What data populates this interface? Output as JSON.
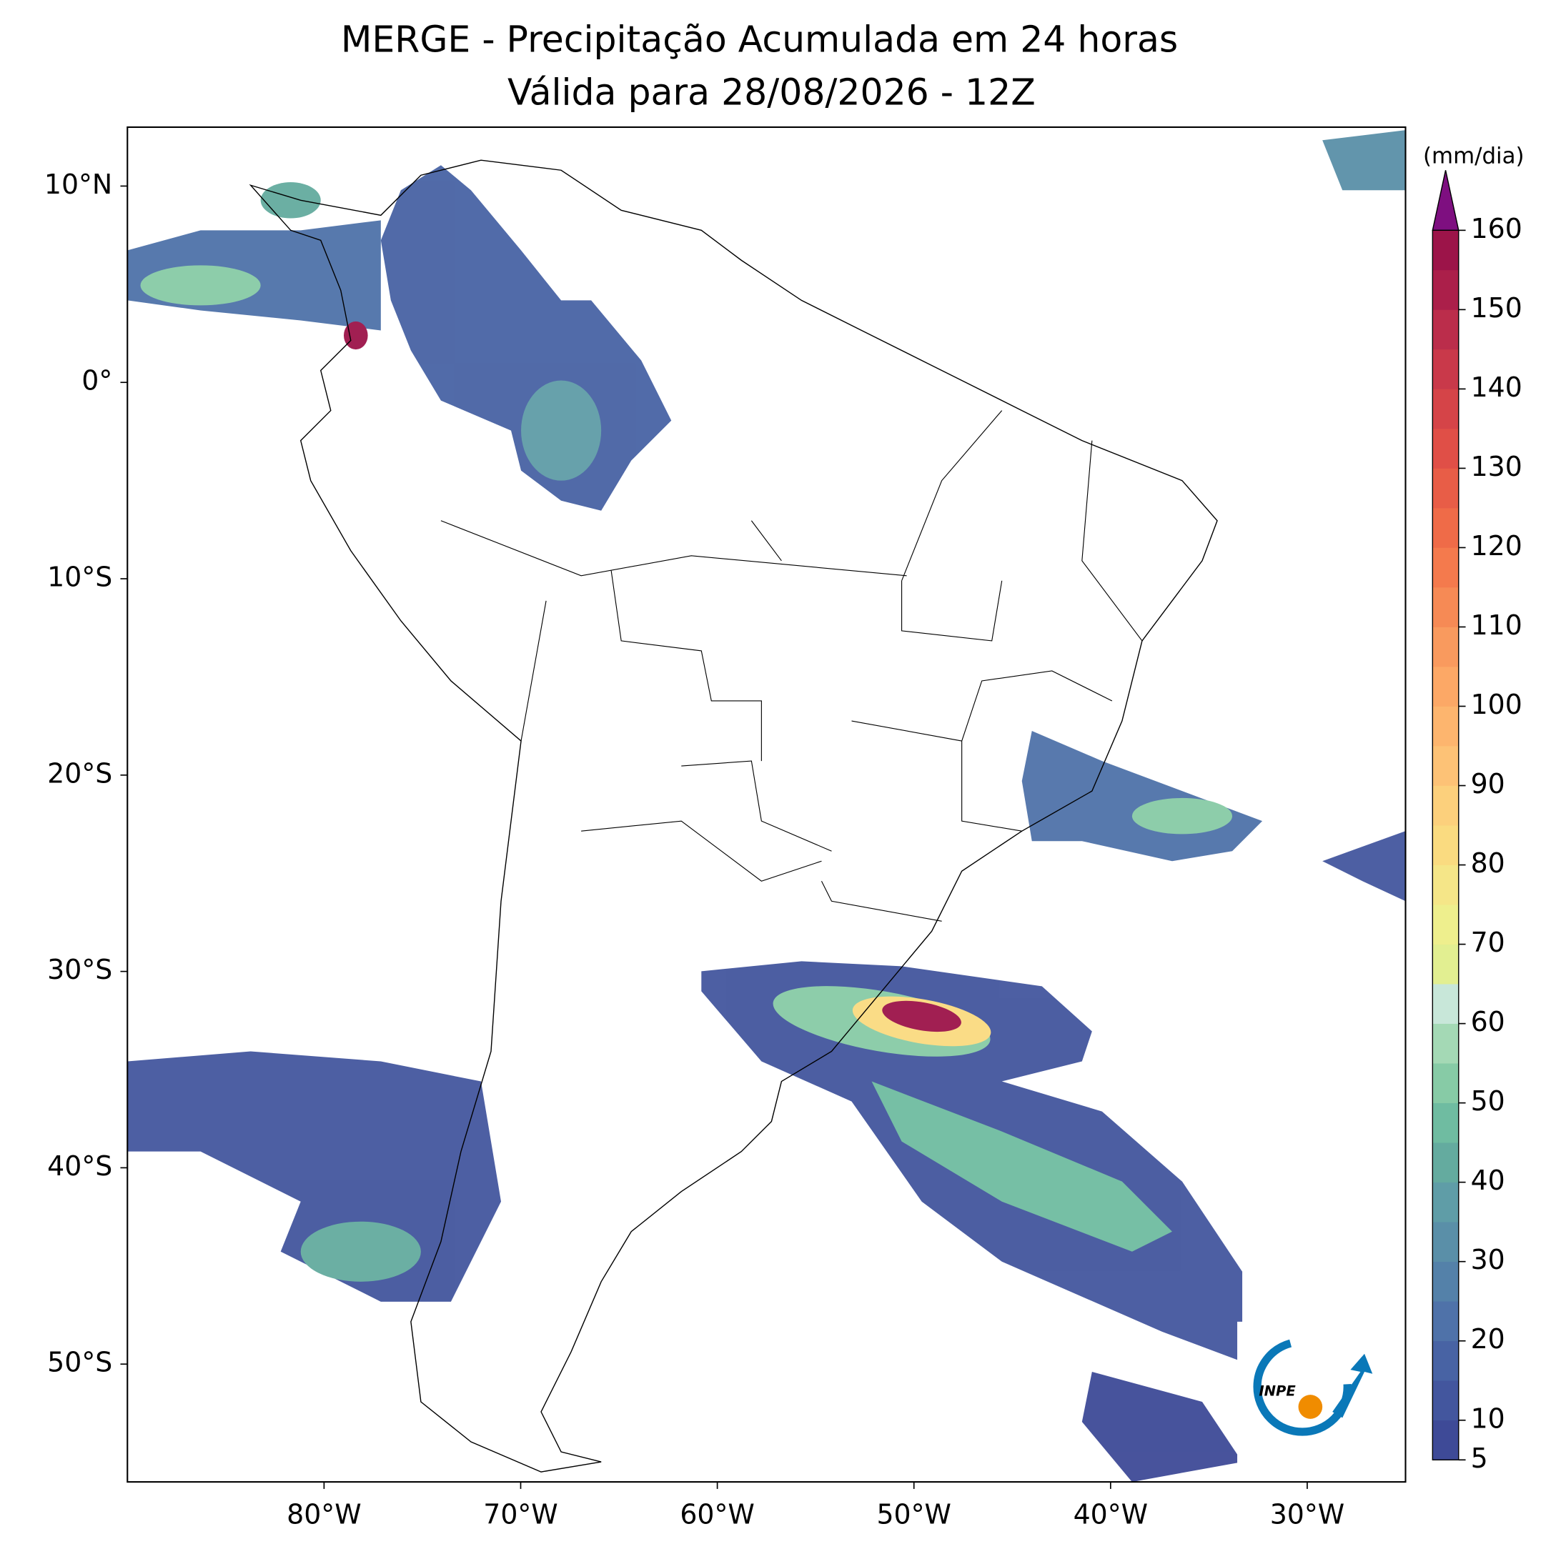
{
  "chart_data": {
    "type": "map",
    "title": "MERGE - Precipitação Acumulada em 24 horas",
    "subtitle": "Válida para 28/08/2026 - 12Z",
    "xlim": [
      -90,
      -25
    ],
    "ylim": [
      -56,
      13
    ],
    "xticks": [
      {
        "value": -80,
        "label": "80°W"
      },
      {
        "value": -70,
        "label": "70°W"
      },
      {
        "value": -60,
        "label": "60°W"
      },
      {
        "value": -50,
        "label": "50°W"
      },
      {
        "value": -40,
        "label": "40°W"
      },
      {
        "value": -30,
        "label": "30°W"
      }
    ],
    "yticks": [
      {
        "value": 10,
        "label": "10°N"
      },
      {
        "value": 0,
        "label": "0°"
      },
      {
        "value": -10,
        "label": "10°S"
      },
      {
        "value": -20,
        "label": "20°S"
      },
      {
        "value": -30,
        "label": "30°S"
      },
      {
        "value": -40,
        "label": "40°S"
      },
      {
        "value": -50,
        "label": "50°S"
      }
    ],
    "colorbar": {
      "label": "(mm/dia)",
      "lim": [
        5,
        160
      ],
      "ticks": [
        5,
        10,
        20,
        30,
        40,
        50,
        60,
        70,
        80,
        90,
        100,
        110,
        120,
        130,
        140,
        150,
        160
      ],
      "levels": [
        5,
        10,
        15,
        20,
        25,
        30,
        35,
        40,
        45,
        50,
        55,
        60,
        65,
        70,
        75,
        80,
        85,
        90,
        95,
        100,
        105,
        110,
        115,
        120,
        125,
        130,
        135,
        140,
        145,
        150,
        155,
        160
      ],
      "colors": [
        "#3e4a97",
        "#43569e",
        "#4863a4",
        "#4f72a9",
        "#5481a9",
        "#5a8fa8",
        "#5f9da7",
        "#64ab9f",
        "#6fbca1",
        "#87cba6",
        "#a4d9b5",
        "#c8e7d9",
        "#e2ef91",
        "#eeef8d",
        "#f5e688",
        "#fadb80",
        "#fcd07c",
        "#fdc276",
        "#fdb56e",
        "#fca866",
        "#f99a5e",
        "#f68a55",
        "#f47a4d",
        "#ef6b48",
        "#e85d47",
        "#e04f47",
        "#d54448",
        "#c9394a",
        "#bb2d4b",
        "#ab1f4a",
        "#9c1449"
      ],
      "extend_color": "#7e0f80"
    },
    "logo_text": "INPE"
  }
}
